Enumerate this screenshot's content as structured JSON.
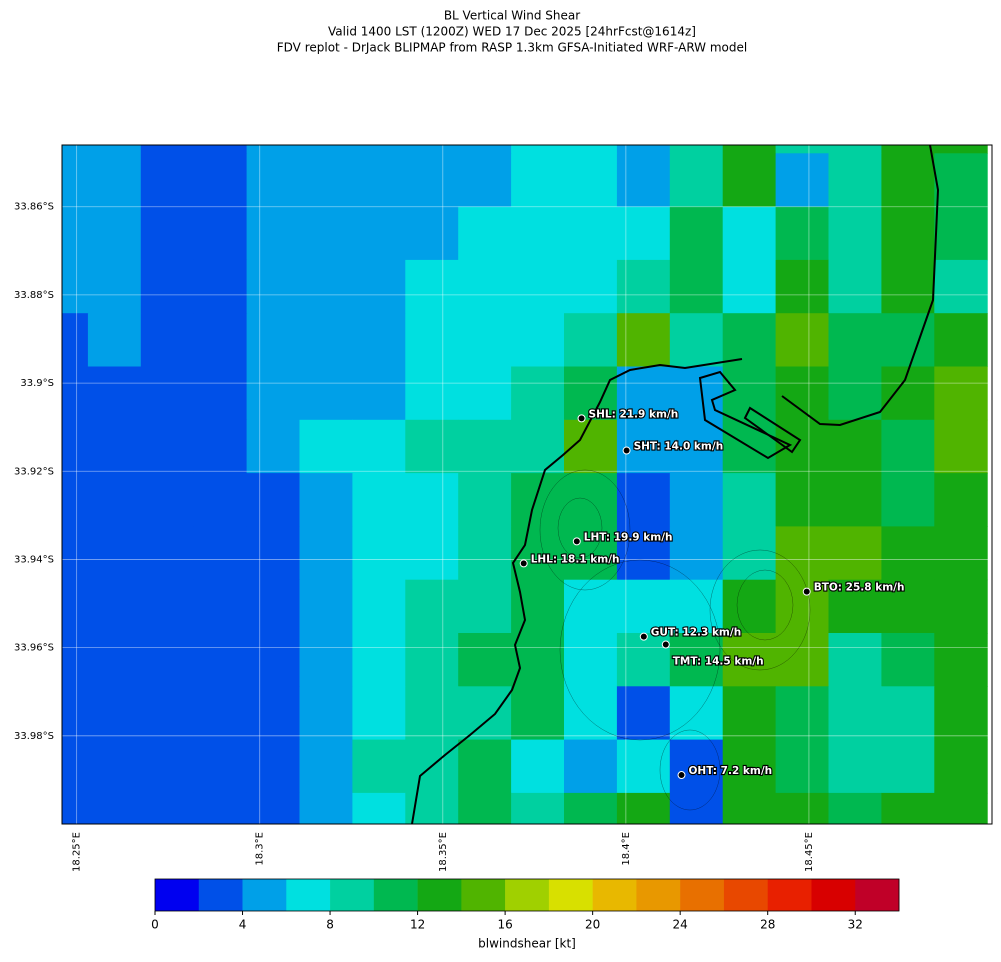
{
  "title": [
    "BL Vertical Wind Shear",
    "Valid 1400 LST (1200Z) WED 17 Dec 2025 [24hrFcst@1614z]",
    "FDV replot - DrJack BLIPMAP from RASP 1.3km GFSA-Initiated WRF-ARW model"
  ],
  "map": {
    "xlim": [
      18.246,
      18.5
    ],
    "ylim": [
      -34.0,
      -33.846
    ],
    "xticks": [
      {
        "value": 18.25,
        "label": "18.25°E"
      },
      {
        "value": 18.3,
        "label": "18.3°E"
      },
      {
        "value": 18.35,
        "label": "18.35°E"
      },
      {
        "value": 18.4,
        "label": "18.4°E"
      },
      {
        "value": 18.45,
        "label": "18.45°E"
      }
    ],
    "yticks": [
      {
        "value": -33.86,
        "label": "33.86°S"
      },
      {
        "value": -33.88,
        "label": "33.88°S"
      },
      {
        "value": -33.9,
        "label": "33.9°S"
      },
      {
        "value": -33.92,
        "label": "33.92°S"
      },
      {
        "value": -33.94,
        "label": "33.94°S"
      },
      {
        "value": -33.96,
        "label": "33.96°S"
      },
      {
        "value": -33.98,
        "label": "33.98°S"
      }
    ],
    "field": {
      "values": [
        [
          5,
          5,
          3,
          3,
          5,
          5,
          5,
          5,
          5,
          7,
          7,
          5,
          9,
          13,
          9,
          9,
          13,
          13
        ],
        [
          5,
          5,
          3,
          3,
          5,
          5,
          5,
          5,
          5,
          7,
          7,
          5,
          9,
          13,
          5,
          9,
          13,
          11
        ],
        [
          5,
          5,
          3,
          3,
          5,
          5,
          5,
          5,
          7,
          7,
          7,
          7,
          11,
          7,
          11,
          9,
          13,
          11
        ],
        [
          5,
          5,
          3,
          3,
          5,
          5,
          5,
          7,
          7,
          7,
          7,
          9,
          11,
          7,
          13,
          9,
          13,
          9
        ],
        [
          3,
          5,
          3,
          3,
          5,
          5,
          5,
          7,
          7,
          7,
          9,
          15,
          9,
          11,
          15,
          11,
          11,
          13
        ],
        [
          3,
          3,
          3,
          3,
          5,
          5,
          5,
          7,
          7,
          9,
          11,
          5,
          5,
          11,
          13,
          11,
          13,
          15
        ],
        [
          3,
          3,
          3,
          3,
          5,
          7,
          7,
          9,
          9,
          9,
          15,
          5,
          5,
          11,
          13,
          13,
          11,
          15
        ],
        [
          3,
          3,
          3,
          3,
          3,
          5,
          7,
          7,
          9,
          11,
          11,
          3,
          5,
          9,
          13,
          13,
          11,
          13
        ],
        [
          3,
          3,
          3,
          3,
          3,
          5,
          7,
          7,
          9,
          11,
          11,
          3,
          5,
          9,
          15,
          15,
          13,
          13
        ],
        [
          3,
          3,
          3,
          3,
          3,
          5,
          7,
          9,
          9,
          11,
          7,
          7,
          7,
          13,
          15,
          13,
          13,
          13
        ],
        [
          3,
          3,
          3,
          3,
          3,
          5,
          7,
          9,
          11,
          11,
          7,
          9,
          11,
          15,
          15,
          9,
          11,
          13
        ],
        [
          3,
          3,
          3,
          3,
          3,
          5,
          7,
          9,
          9,
          11,
          7,
          3,
          7,
          13,
          11,
          9,
          9,
          13
        ],
        [
          3,
          3,
          3,
          3,
          3,
          5,
          9,
          9,
          11,
          7,
          5,
          7,
          3,
          13,
          11,
          9,
          9,
          13
        ],
        [
          3,
          3,
          3,
          3,
          3,
          5,
          7,
          9,
          11,
          9,
          11,
          13,
          3,
          13,
          13,
          11,
          13,
          13
        ]
      ]
    },
    "stations": [
      {
        "label": "SHL: 21.9 km/h",
        "lon": 18.3879,
        "lat": -33.908
      },
      {
        "label": "SHT: 14.0 km/h",
        "lon": 18.4002,
        "lat": -33.9153
      },
      {
        "label": "LHT: 19.9 km/h",
        "lon": 18.3866,
        "lat": -33.9359
      },
      {
        "label": "LHL: 18.1 km/h",
        "lon": 18.3721,
        "lat": -33.9409
      },
      {
        "label": "BTO: 25.8 km/h",
        "lon": 18.4494,
        "lat": -33.9473
      },
      {
        "label": "GUT: 12.3 km/h",
        "lon": 18.4049,
        "lat": -33.9575
      },
      {
        "label": "TMT: 14.5 km/h",
        "lon": 18.4109,
        "lat": -33.9593
      },
      {
        "label": "OHT: 7.2 km/h",
        "lon": 18.4152,
        "lat": -33.9889
      }
    ],
    "colorbar": {
      "lim": [
        0,
        34
      ],
      "ticks": [
        0,
        4,
        8,
        12,
        16,
        20,
        24,
        28,
        32
      ],
      "label": "blwindshear [kt]",
      "colors": [
        "#0000f0",
        "#0050e8",
        "#00a0e8",
        "#00e0e0",
        "#00d0a0",
        "#00b850",
        "#14a814",
        "#50b400",
        "#a0d000",
        "#d8e000",
        "#e8b800",
        "#e89800",
        "#e87000",
        "#e84800",
        "#e82000",
        "#d80000",
        "#c00028"
      ]
    }
  }
}
